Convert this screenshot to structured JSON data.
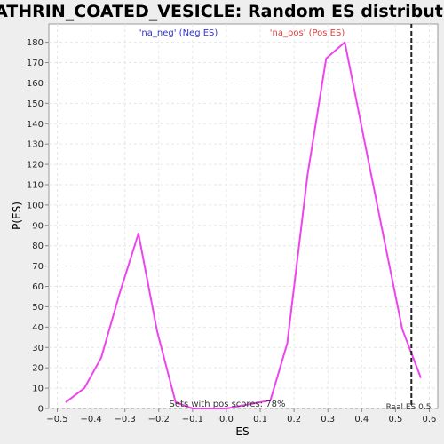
{
  "chart_data": {
    "type": "line",
    "title": "CLATHRIN_COATED_VESICLE: Random ES distribution",
    "xlabel": "ES",
    "ylabel": "P(ES)",
    "xlim": [
      -0.525,
      0.625
    ],
    "ylim": [
      0,
      189
    ],
    "xticks": [
      -0.5,
      -0.4,
      -0.3,
      -0.2,
      -0.1,
      0.0,
      0.1,
      0.2,
      0.3,
      0.4,
      0.5,
      0.6
    ],
    "xtick_labels": [
      "−0.5",
      "−0.4",
      "−0.3",
      "−0.2",
      "−0.1",
      "0.0",
      "0.1",
      "0.2",
      "0.3",
      "0.4",
      "0.5",
      "0.6"
    ],
    "yticks": [
      0,
      10,
      20,
      30,
      40,
      50,
      60,
      70,
      80,
      90,
      100,
      110,
      120,
      130,
      140,
      150,
      160,
      170,
      180
    ],
    "grid": true,
    "series": [
      {
        "color": "#ee44ee",
        "x": [
          -0.475,
          -0.42,
          -0.37,
          -0.315,
          -0.26,
          -0.205,
          -0.15,
          -0.1,
          -0.045,
          0.0,
          0.13,
          0.18,
          0.24,
          0.295,
          0.35,
          0.41,
          0.47,
          0.52,
          0.575
        ],
        "y": [
          3,
          10,
          25,
          57,
          86,
          38,
          3,
          0,
          0,
          0,
          4,
          32,
          115,
          172,
          180,
          130,
          80,
          39,
          15
        ]
      }
    ],
    "annotations": {
      "neg_label": "'na_neg' (Neg ES)",
      "neg_color": "#3333cc",
      "pos_label": "'na_pos' (Pos ES)",
      "pos_color": "#dd4444",
      "sets_text": "Sets with pos scores: 78%",
      "real_es_label": "Real ES 0.5",
      "real_es_value": 0.547
    }
  }
}
